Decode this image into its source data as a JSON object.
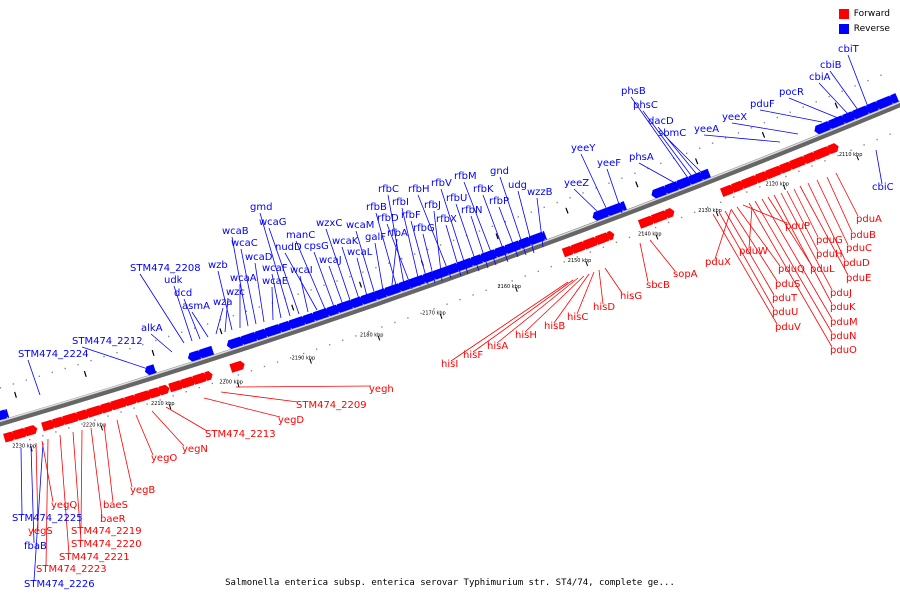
{
  "legend": {
    "forward_label": "Forward",
    "reverse_label": "Reverse",
    "forward_color": "#ff0000",
    "reverse_color": "#0000ff"
  },
  "caption": "Salmonella enterica subsp. enterica serovar Typhimurium str. ST4/74, complete ge...",
  "tick_labels": [
    "2110 kbp",
    "2120 kbp",
    "2130 kbp",
    "2140 kbp",
    "2150 kbp",
    "2160 kbp",
    "2170 kbp",
    "2180 kbp",
    "2190 kbp",
    "2200 kbp",
    "2210 kbp",
    "2220 kbp",
    "2230 kbp"
  ],
  "reverse_genes": [
    "cbiT",
    "cbiB",
    "cbiA",
    "pocR",
    "pduF",
    "yeeX",
    "yeeA",
    "phsB",
    "phsC",
    "dacD",
    "sbmC",
    "phsA",
    "yeeY",
    "yeeF",
    "yeeZ",
    "wzzB",
    "udg",
    "gnd",
    "rfbP",
    "rfbK",
    "rfbM",
    "rfbN",
    "rfbU",
    "rfbV",
    "rfbX",
    "rfbH",
    "rfbJ",
    "rfbG",
    "rfbF",
    "rfbI",
    "rfbD",
    "rfbC",
    "rfbB",
    "rfbA",
    "galF",
    "wcaM",
    "wcaL",
    "wcaK",
    "wzxC",
    "wcaJ",
    "cpsG",
    "manC",
    "nudD",
    "wcaI",
    "wcaG",
    "gmd",
    "wcaF",
    "wcaE",
    "wcaD",
    "wcaC",
    "wcaB",
    "wcaA",
    "wzb",
    "wzc",
    "wza",
    "asmA",
    "dcd",
    "udk",
    "STM474_2208",
    "alkA",
    "STM474_2212",
    "STM474_2224",
    "cbiC",
    "STM474_2225",
    "fbaB",
    "STM474_2226"
  ],
  "forward_genes": [
    "pduA",
    "pduB",
    "pduC",
    "pduD",
    "pduE",
    "pduG",
    "pduH",
    "pduJ",
    "pduK",
    "pduL",
    "pduM",
    "pduN",
    "pduO",
    "pduP",
    "pduQ",
    "pduS",
    "pduT",
    "pduU",
    "pduV",
    "pduW",
    "pduX",
    "sopA",
    "sbcB",
    "hisG",
    "hisD",
    "hisC",
    "hisB",
    "hisH",
    "hisA",
    "hisF",
    "hisI",
    "yegh",
    "STM474_2209",
    "yegD",
    "STM474_2213",
    "yegN",
    "yegO",
    "yegB",
    "baeS",
    "baeR",
    "STM474_2219",
    "STM474_2220",
    "STM474_2221",
    "STM474_2223",
    "yegQ",
    "yegS"
  ]
}
